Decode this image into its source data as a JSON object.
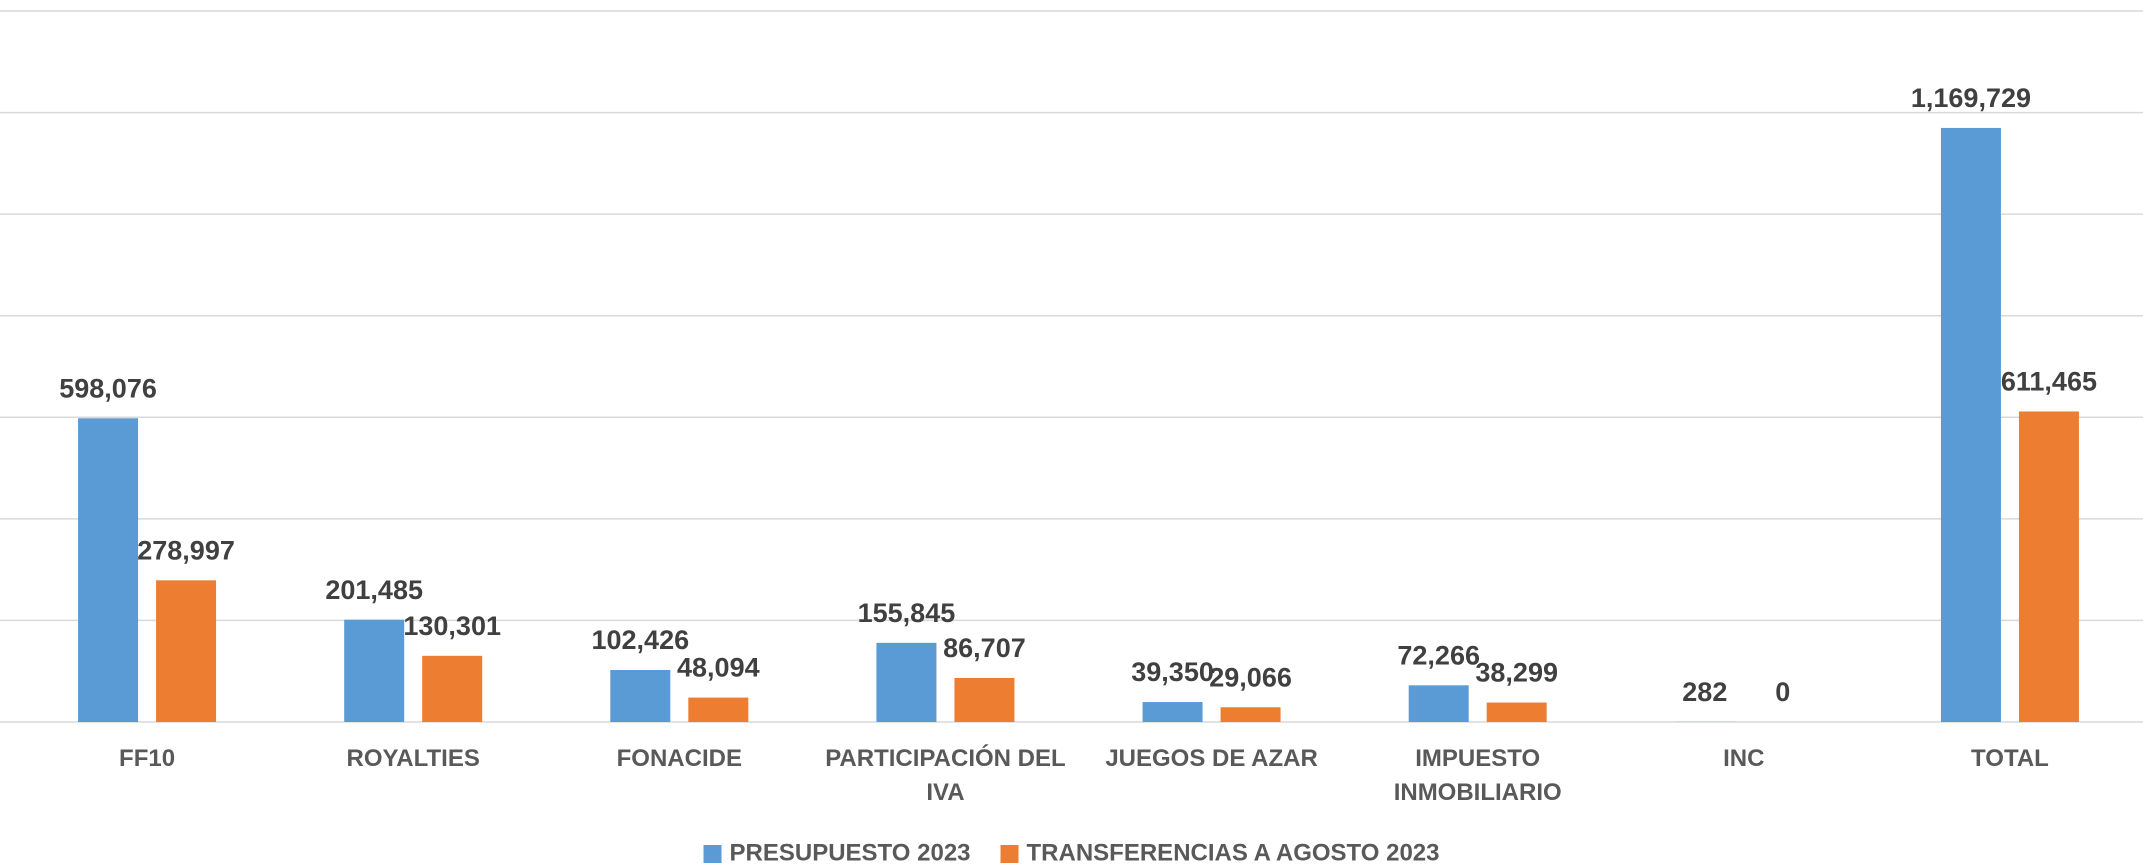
{
  "chart_data": {
    "type": "bar",
    "categories": [
      "FF10",
      "ROYALTIES",
      "FONACIDE",
      "PARTICIPACIÓN DEL IVA",
      "JUEGOS DE AZAR",
      "IMPUESTO INMOBILIARIO",
      "INC",
      "TOTAL"
    ],
    "series": [
      {
        "name": "PRESUPUESTO 2023",
        "color": "#5b9bd5",
        "values": [
          598076,
          201485,
          102426,
          155845,
          39350,
          72266,
          282,
          1169729
        ],
        "value_labels": [
          "598,076",
          "201,485",
          "102,426",
          "155,845",
          "39,350",
          "72,266",
          "282",
          "1,169,729"
        ]
      },
      {
        "name": "TRANSFERENCIAS A AGOSTO 2023",
        "color": "#ed7d31",
        "values": [
          278997,
          130301,
          48094,
          86707,
          29066,
          38299,
          0,
          611465
        ],
        "value_labels": [
          "278,997",
          "130,301",
          "48,094",
          "86,707",
          "29,066",
          "38,299",
          "0",
          "611,465"
        ]
      }
    ],
    "ylim": [
      0,
      1400000
    ],
    "yticks": [
      0,
      200000,
      400000,
      600000,
      800000,
      1000000,
      1200000,
      1400000
    ],
    "grid": true,
    "legend": "bottom"
  }
}
